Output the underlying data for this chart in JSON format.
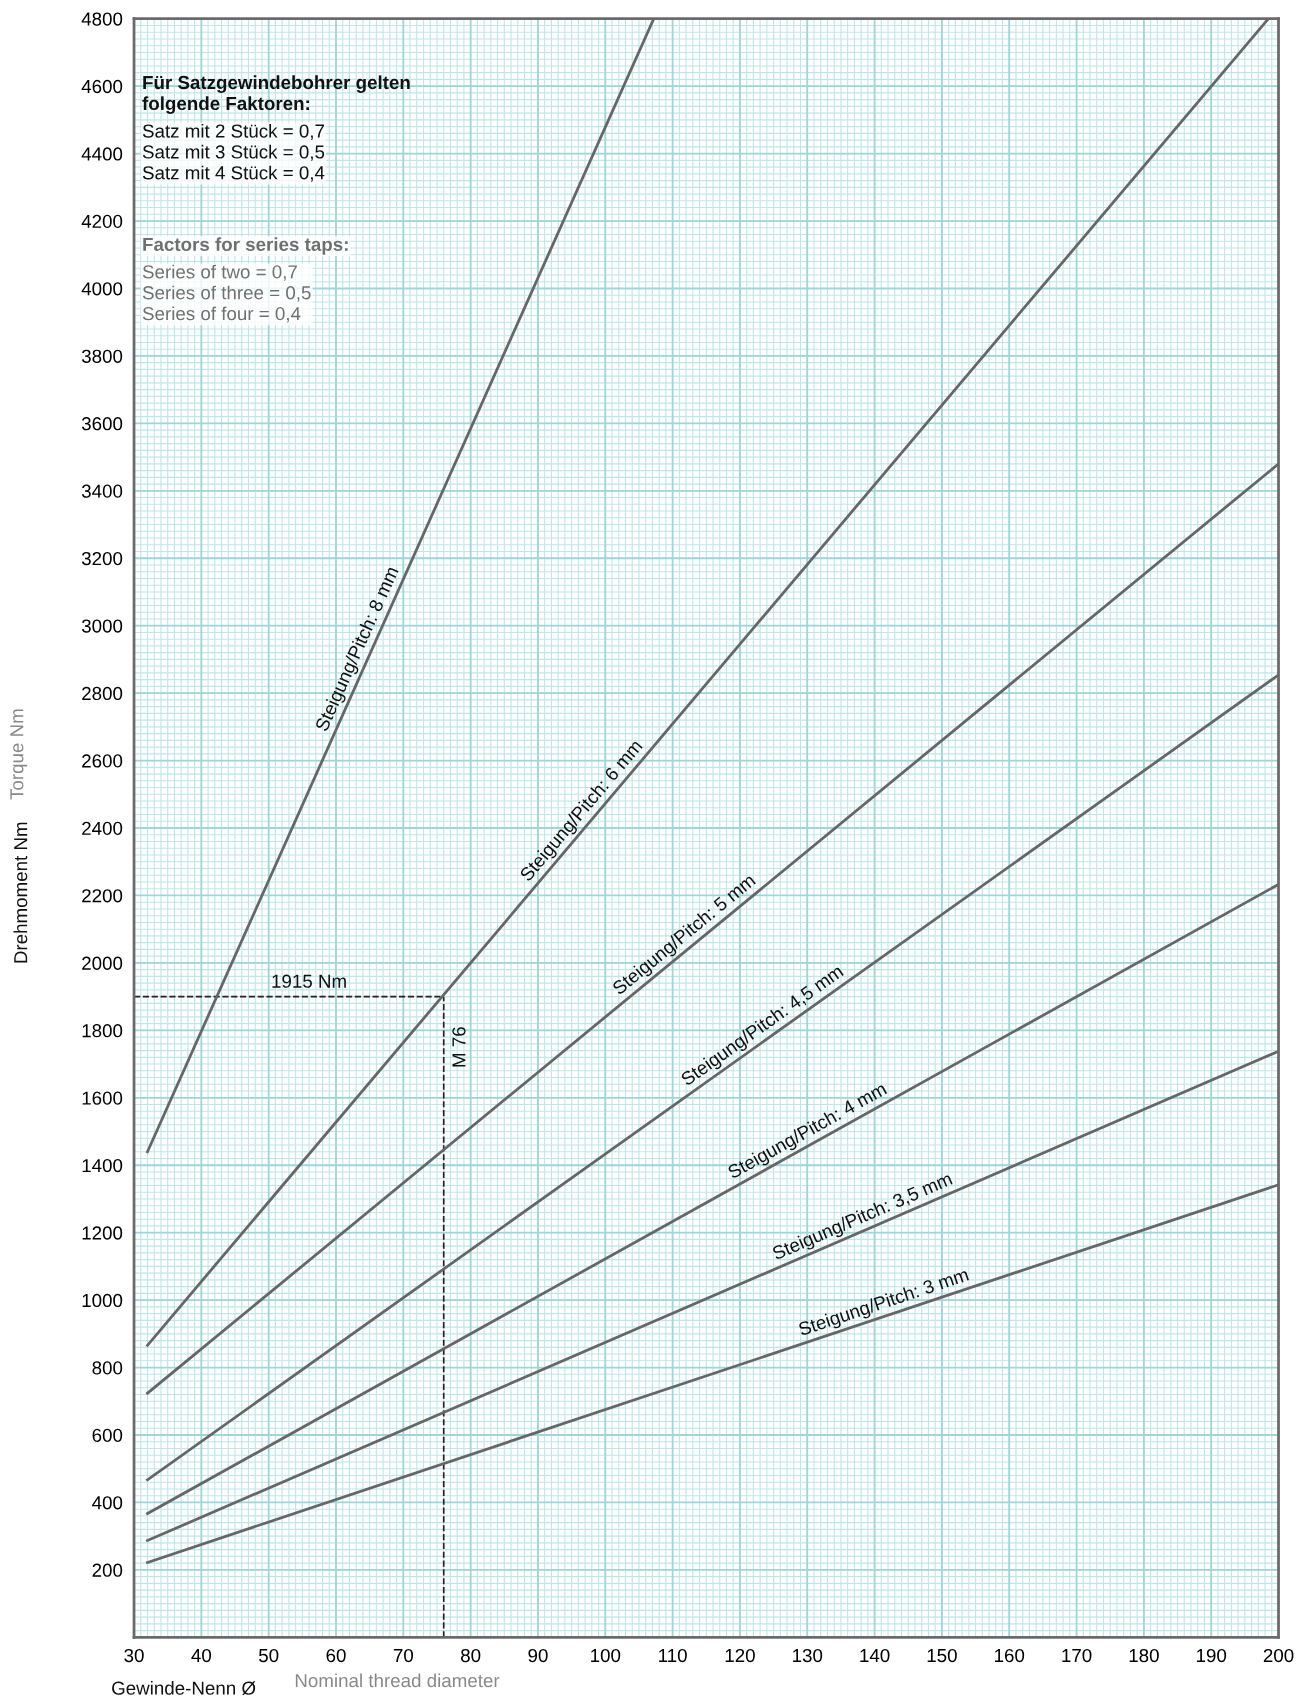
{
  "chart_data": {
    "type": "line",
    "xlabel": "Gewinde-Nenn Ø",
    "ylabel": "Drehmoment Nm",
    "xlim": [
      30,
      200
    ],
    "ylim": [
      0,
      4800
    ],
    "xticks": [
      30,
      40,
      50,
      60,
      70,
      80,
      90,
      100,
      110,
      120,
      130,
      140,
      150,
      160,
      170,
      180,
      190,
      200
    ],
    "yticks": [
      200,
      400,
      600,
      800,
      1000,
      1200,
      1400,
      1600,
      1800,
      2000,
      2200,
      2400,
      2600,
      2800,
      3000,
      3200,
      3400,
      3600,
      3800,
      4000,
      4200,
      4400,
      4600,
      4800
    ],
    "grid": true,
    "legend": false,
    "marker": "none",
    "line_style": "solid",
    "series": [
      {
        "name": "Steigung/Pitch: 8 mm",
        "color": "#666666",
        "x": [
          32,
          107.2
        ],
        "values": [
          1440,
          4800
        ]
      },
      {
        "name": "Steigung/Pitch: 6 mm",
        "color": "#666666",
        "x": [
          32,
          198.5
        ],
        "values": [
          866,
          4800
        ]
      },
      {
        "name": "Steigung/Pitch: 5 mm",
        "color": "#666666",
        "x": [
          32,
          200
        ],
        "values": [
          724,
          3480
        ]
      },
      {
        "name": "Steigung/Pitch: 4,5 mm",
        "color": "#666666",
        "x": [
          32,
          200
        ],
        "values": [
          467,
          2854
        ]
      },
      {
        "name": "Steigung/Pitch: 4 mm",
        "color": "#666666",
        "x": [
          32,
          200
        ],
        "values": [
          367,
          2233
        ]
      },
      {
        "name": "Steigung/Pitch: 3,5 mm",
        "color": "#666666",
        "x": [
          32,
          200
        ],
        "values": [
          287,
          1738
        ]
      },
      {
        "name": "Steigung/Pitch: 3 mm",
        "color": "#666666",
        "x": [
          32,
          200
        ],
        "values": [
          222,
          1342
        ]
      }
    ],
    "ref_lines": [
      {
        "axis": "y",
        "value": 1900,
        "label": "1915 Nm",
        "color": "#222222",
        "line_style": "dashed"
      },
      {
        "axis": "x",
        "value": 76,
        "label": "M 76",
        "color": "#222222",
        "line_style": "dashed"
      }
    ],
    "annotations": [
      "Für Satzgewindebohrer gelten\nfolgende Faktoren:",
      "Satz mit 2 Stück = 0,7\nSatz mit 3 Stück = 0,5\nSatz mit 4 Stück = 0,4",
      "Factors for series taps:",
      "Series of two = 0,7\nSeries of three = 0,5\nSeries of four = 0,4",
      "Nominal thread diameter",
      "Torque Nm"
    ]
  }
}
